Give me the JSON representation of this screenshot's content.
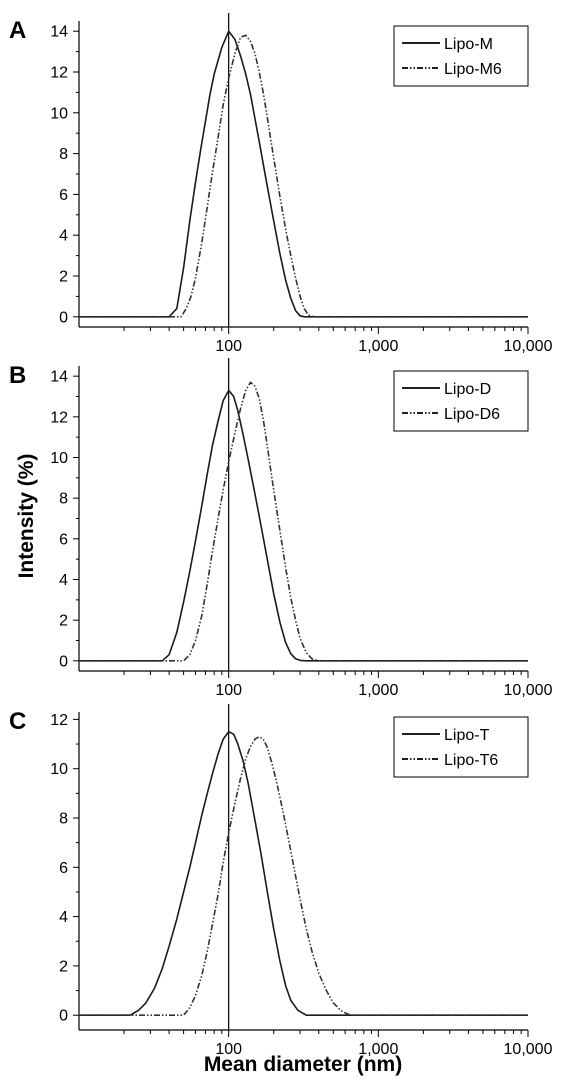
{
  "figure": {
    "ylabel": "Intensity (%)",
    "xlabel": "Mean diameter (nm)"
  },
  "chart_data": [
    {
      "type": "line",
      "panel": "A",
      "x_scale": "log",
      "xlim": [
        10,
        10000
      ],
      "ylim": [
        -0.5,
        14.5
      ],
      "x_ticks": [
        100,
        1000,
        10000
      ],
      "x_tick_labels": [
        "100",
        "1,000",
        "10,000"
      ],
      "y_ticks": [
        0,
        2,
        4,
        6,
        8,
        10,
        12,
        14
      ],
      "reference_line_x": 100,
      "legend_position": "top-right",
      "series": [
        {
          "name": "Lipo-M",
          "style": "solid",
          "x": [
            10,
            40,
            45,
            50,
            55,
            60,
            65,
            70,
            75,
            80,
            90,
            100,
            110,
            120,
            130,
            140,
            150,
            160,
            170,
            180,
            200,
            220,
            240,
            260,
            280,
            300,
            320,
            10000
          ],
          "values": [
            0,
            0,
            0.4,
            2.4,
            4.7,
            6.6,
            8.2,
            9.6,
            10.9,
            11.9,
            13.2,
            14.0,
            13.6,
            12.8,
            11.9,
            10.9,
            9.7,
            8.6,
            7.5,
            6.5,
            4.7,
            3.1,
            1.8,
            0.9,
            0.3,
            0.05,
            0,
            0
          ]
        },
        {
          "name": "Lipo-M6",
          "style": "dash-dot",
          "x": [
            10,
            48,
            52,
            56,
            60,
            66,
            72,
            78,
            85,
            92,
            100,
            110,
            120,
            130,
            140,
            150,
            160,
            170,
            180,
            190,
            200,
            220,
            240,
            260,
            280,
            300,
            320,
            340,
            370,
            10000
          ],
          "values": [
            0,
            0,
            0.4,
            1.0,
            1.9,
            3.6,
            5.4,
            7.1,
            8.8,
            10.4,
            11.7,
            12.9,
            13.7,
            13.8,
            13.5,
            12.9,
            12.0,
            11.0,
            9.9,
            8.8,
            7.8,
            5.9,
            4.3,
            3.0,
            1.9,
            1.0,
            0.4,
            0.1,
            0,
            0
          ]
        }
      ]
    },
    {
      "type": "line",
      "panel": "B",
      "x_scale": "log",
      "xlim": [
        10,
        10000
      ],
      "ylim": [
        -0.5,
        14.5
      ],
      "x_ticks": [
        100,
        1000,
        10000
      ],
      "x_tick_labels": [
        "100",
        "1,000",
        "10,000"
      ],
      "y_ticks": [
        0,
        2,
        4,
        6,
        8,
        10,
        12,
        14
      ],
      "reference_line_x": 100,
      "legend_position": "top-right",
      "series": [
        {
          "name": "Lipo-D",
          "style": "solid",
          "x": [
            10,
            36,
            40,
            45,
            50,
            55,
            60,
            66,
            72,
            78,
            85,
            92,
            100,
            108,
            115,
            125,
            135,
            150,
            165,
            180,
            200,
            220,
            240,
            260,
            280,
            300,
            330,
            10000
          ],
          "values": [
            0,
            0,
            0.3,
            1.4,
            2.9,
            4.4,
            5.9,
            7.6,
            9.2,
            10.6,
            11.8,
            12.8,
            13.3,
            13.0,
            12.3,
            11.1,
            9.9,
            8.2,
            6.6,
            5.1,
            3.3,
            1.9,
            0.9,
            0.35,
            0.1,
            0.02,
            0,
            0
          ]
        },
        {
          "name": "Lipo-D6",
          "style": "dash-dot",
          "x": [
            10,
            50,
            55,
            60,
            66,
            72,
            78,
            85,
            92,
            100,
            110,
            120,
            130,
            140,
            150,
            160,
            170,
            180,
            190,
            200,
            220,
            240,
            260,
            280,
            300,
            330,
            360,
            400,
            10000
          ],
          "values": [
            0,
            0,
            0.3,
            1.0,
            2.2,
            3.8,
            5.4,
            7.0,
            8.4,
            9.8,
            11.2,
            12.4,
            13.3,
            13.7,
            13.5,
            12.9,
            11.9,
            10.7,
            9.5,
            8.4,
            6.4,
            4.6,
            3.1,
            2.0,
            1.1,
            0.4,
            0.1,
            0,
            0
          ]
        }
      ]
    },
    {
      "type": "line",
      "panel": "C",
      "x_scale": "log",
      "xlim": [
        10,
        10000
      ],
      "ylim": [
        -0.6,
        12.3
      ],
      "x_ticks": [
        100,
        1000,
        10000
      ],
      "x_tick_labels": [
        "100",
        "1,000",
        "10,000"
      ],
      "y_ticks": [
        0,
        2,
        4,
        6,
        8,
        10,
        12
      ],
      "reference_line_x": 100,
      "legend_position": "top-right",
      "series": [
        {
          "name": "Lipo-T",
          "style": "solid",
          "x": [
            10,
            22,
            25,
            28,
            32,
            36,
            40,
            45,
            50,
            55,
            60,
            66,
            72,
            78,
            85,
            92,
            100,
            108,
            115,
            125,
            135,
            150,
            165,
            180,
            200,
            220,
            240,
            260,
            290,
            330,
            10000
          ],
          "values": [
            0,
            0,
            0.2,
            0.5,
            1.1,
            1.9,
            2.8,
            3.9,
            5.0,
            6.0,
            7.0,
            8.1,
            9.0,
            9.8,
            10.6,
            11.2,
            11.5,
            11.4,
            11.0,
            10.3,
            9.4,
            7.9,
            6.5,
            5.1,
            3.5,
            2.2,
            1.2,
            0.6,
            0.2,
            0,
            0
          ]
        },
        {
          "name": "Lipo-T6",
          "style": "dash-dot",
          "x": [
            10,
            50,
            55,
            60,
            66,
            72,
            78,
            85,
            92,
            100,
            110,
            120,
            130,
            140,
            150,
            160,
            170,
            180,
            195,
            210,
            230,
            250,
            275,
            300,
            330,
            360,
            400,
            450,
            500,
            560,
            620,
            680,
            10000
          ],
          "values": [
            0,
            0,
            0.3,
            0.8,
            1.6,
            2.6,
            3.7,
            4.9,
            6.2,
            7.4,
            8.6,
            9.6,
            10.4,
            10.9,
            11.2,
            11.3,
            11.2,
            10.9,
            10.2,
            9.4,
            8.3,
            7.2,
            5.9,
            4.7,
            3.5,
            2.6,
            1.7,
            1.0,
            0.5,
            0.2,
            0.05,
            0,
            0
          ]
        }
      ]
    }
  ]
}
